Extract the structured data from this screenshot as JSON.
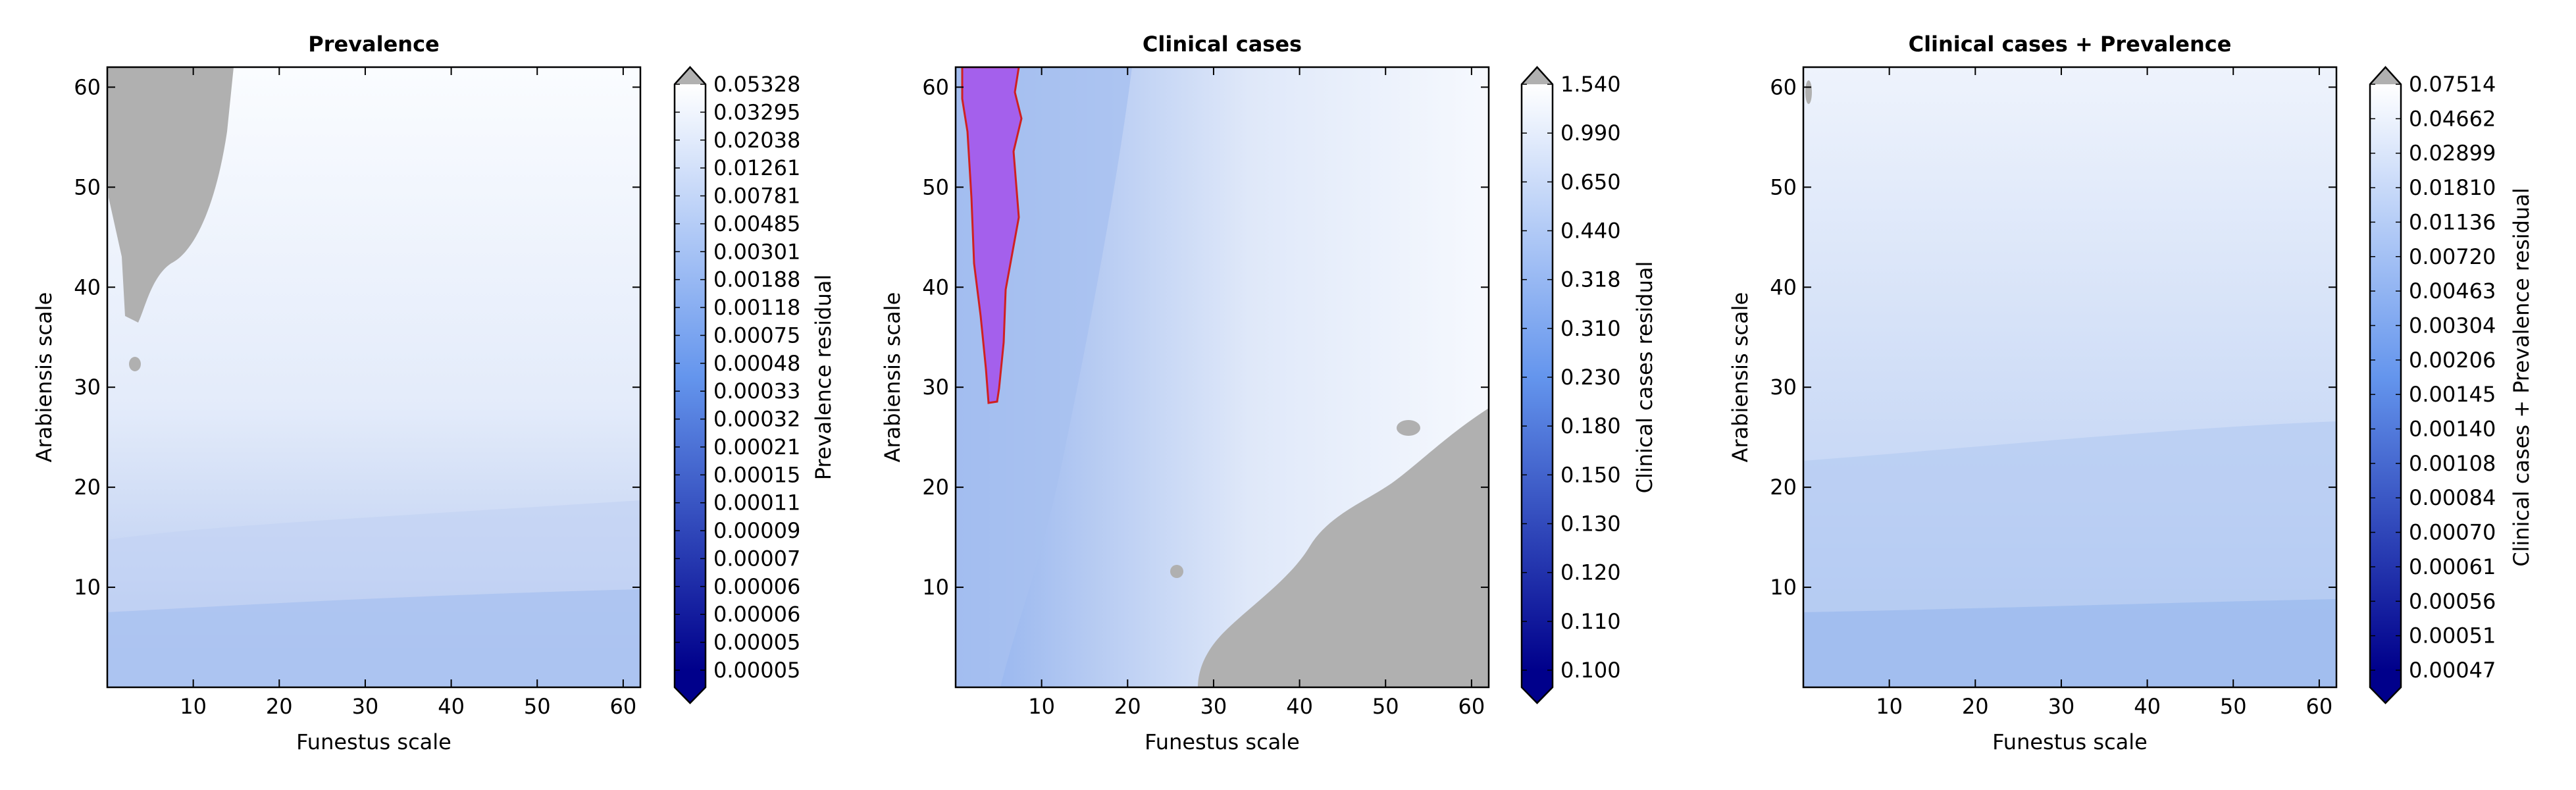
{
  "chart_data": [
    {
      "type": "heatmap",
      "title": "Prevalence",
      "xlabel": "Funestus scale",
      "ylabel": "Arabiensis scale",
      "xlim": [
        0,
        62
      ],
      "ylim": [
        0,
        62
      ],
      "xticks": [
        10,
        20,
        30,
        40,
        50,
        60
      ],
      "yticks": [
        10,
        20,
        30,
        40,
        50,
        60
      ],
      "colorbar_label": "Prevalence residual",
      "colorbar_ticks": [
        "0.05328",
        "0.03295",
        "0.02038",
        "0.01261",
        "0.00781",
        "0.00485",
        "0.00301",
        "0.00188",
        "0.00118",
        "0.00075",
        "0.00048",
        "0.00033",
        "0.00032",
        "0.00021",
        "0.00015",
        "0.00011",
        "0.00009",
        "0.00007",
        "0.00006",
        "0.00006",
        "0.00005",
        "0.00005"
      ],
      "colorbar_extend": "both",
      "over_color": "#b0b0b0",
      "grid": false
    },
    {
      "type": "heatmap",
      "title": "Clinical cases",
      "xlabel": "Funestus scale",
      "ylabel": "Arabiensis scale",
      "xlim": [
        0,
        62
      ],
      "ylim": [
        0,
        62
      ],
      "xticks": [
        10,
        20,
        30,
        40,
        50,
        60
      ],
      "yticks": [
        10,
        20,
        30,
        40,
        50,
        60
      ],
      "colorbar_label": "Clinical cases residual",
      "colorbar_ticks": [
        "1.540",
        "0.990",
        "0.650",
        "0.440",
        "0.318",
        "0.310",
        "0.230",
        "0.180",
        "0.150",
        "0.130",
        "0.120",
        "0.110",
        "0.100"
      ],
      "colorbar_extend": "both",
      "over_color": "#b0b0b0",
      "highlight_color": "#a460ec",
      "grid": false
    },
    {
      "type": "heatmap",
      "title": "Clinical cases + Prevalence",
      "xlabel": "Funestus scale",
      "ylabel": "Arabiensis scale",
      "xlim": [
        0,
        62
      ],
      "ylim": [
        0,
        62
      ],
      "xticks": [
        10,
        20,
        30,
        40,
        50,
        60
      ],
      "yticks": [
        10,
        20,
        30,
        40,
        50,
        60
      ],
      "colorbar_label": "Clinical cases + Prevalence residual",
      "colorbar_ticks": [
        "0.07514",
        "0.04662",
        "0.02899",
        "0.01810",
        "0.01136",
        "0.00720",
        "0.00463",
        "0.00304",
        "0.00206",
        "0.00145",
        "0.00140",
        "0.00108",
        "0.00084",
        "0.00070",
        "0.00061",
        "0.00056",
        "0.00051",
        "0.00047"
      ],
      "colorbar_extend": "both",
      "over_color": "#b0b0b0",
      "grid": false
    }
  ],
  "colors": {
    "low": "#00008b",
    "mid": "#6495ed",
    "high": "#ffffff",
    "gray": "#b0b0b0"
  }
}
